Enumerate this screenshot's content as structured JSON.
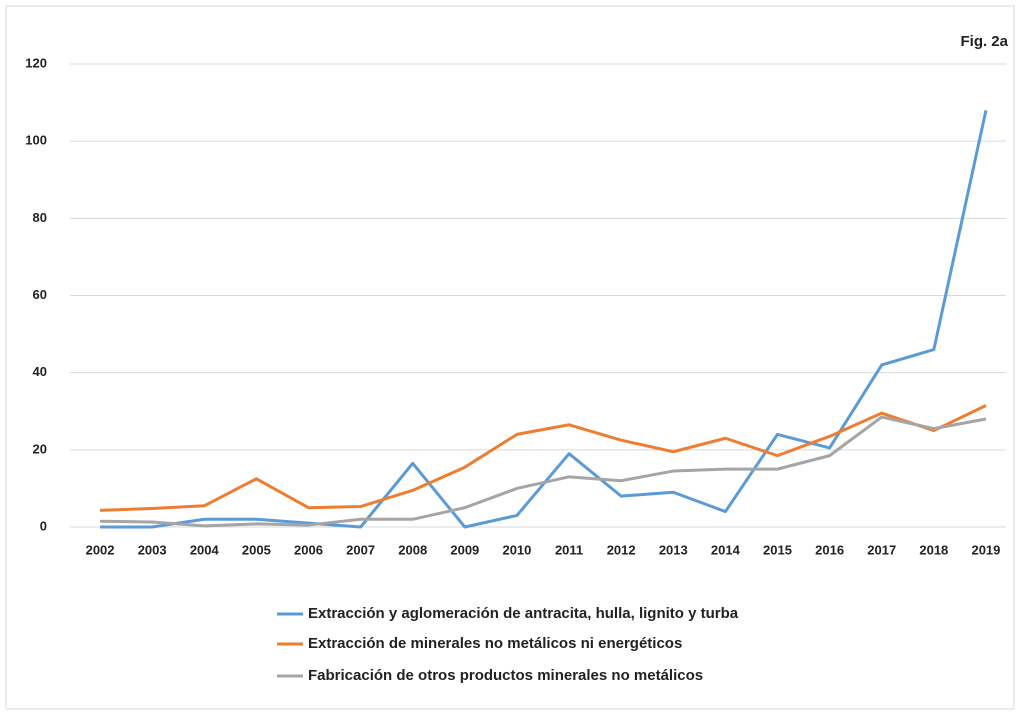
{
  "chart_data": {
    "type": "line",
    "annotation": "Fig. 2a",
    "categories": [
      "2002",
      "2003",
      "2004",
      "2005",
      "2006",
      "2007",
      "2008",
      "2009",
      "2010",
      "2011",
      "2012",
      "2013",
      "2014",
      "2015",
      "2016",
      "2017",
      "2018",
      "2019"
    ],
    "series": [
      {
        "name": "Extracción y aglomeración de antracita, hulla, lignito y turba",
        "color": "#5b9bd5",
        "values": [
          0,
          0,
          2,
          2,
          1,
          0,
          16.5,
          0,
          3,
          19,
          8,
          9,
          4,
          24,
          20.5,
          42,
          46,
          108
        ]
      },
      {
        "name": "Extracción de minerales no metálicos ni energéticos",
        "color": "#ed7d31",
        "values": [
          4.3,
          4.8,
          5.5,
          12.5,
          5,
          5.3,
          9.5,
          15.5,
          24,
          26.5,
          22.5,
          19.5,
          23,
          18.5,
          23.5,
          29.5,
          25,
          31.5
        ]
      },
      {
        "name": "Fabricación de otros productos minerales no metálicos",
        "color": "#a5a5a5",
        "values": [
          1.5,
          1.3,
          0.3,
          0.8,
          0.5,
          2,
          2,
          5,
          10,
          13,
          12,
          14.5,
          15,
          15,
          18.5,
          28.5,
          25.5,
          28
        ]
      }
    ],
    "ylim": [
      0,
      120
    ],
    "yticks": [
      0,
      20,
      40,
      60,
      80,
      100,
      120
    ],
    "grid": true,
    "legend": "bottom"
  }
}
